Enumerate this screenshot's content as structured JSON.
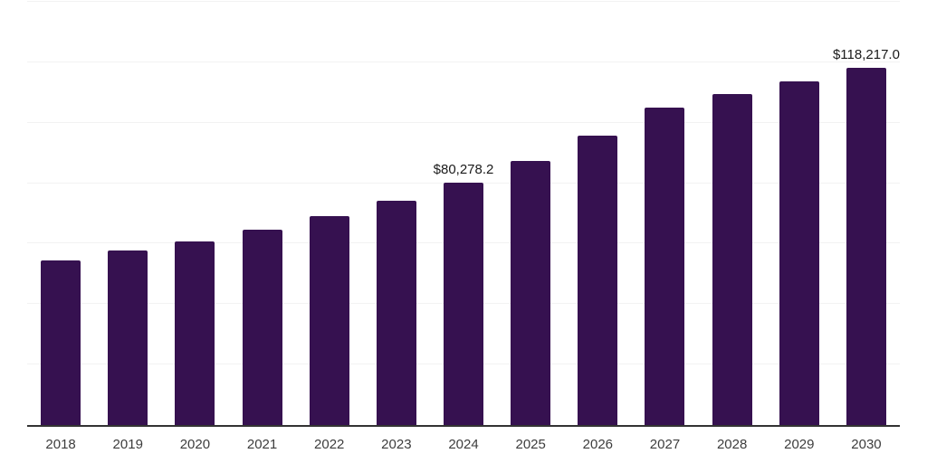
{
  "chart_data": {
    "type": "bar",
    "categories": [
      "2018",
      "2019",
      "2020",
      "2021",
      "2022",
      "2023",
      "2024",
      "2025",
      "2026",
      "2027",
      "2028",
      "2029",
      "2030"
    ],
    "values": [
      54400,
      57700,
      60800,
      64700,
      69200,
      74300,
      80278.2,
      87500,
      95800,
      105100,
      109500,
      113800,
      118217.0
    ],
    "bar_labels": [
      "",
      "",
      "",
      "",
      "",
      "",
      "$80,278.2",
      "",
      "",
      "",
      "",
      "",
      "$118,217.0"
    ],
    "xlabel": "",
    "ylabel": "",
    "ylim": [
      0,
      140000
    ],
    "gridline_step": 20000,
    "grid": true,
    "legend_position": "none",
    "bar_color": "#361150",
    "axis_line_color": "#333333",
    "gridline_color": "#f2f2f2",
    "value_label_color": "#1a1a1a",
    "tick_label_color": "#3d3d3d",
    "background_color": "#ffffff"
  }
}
